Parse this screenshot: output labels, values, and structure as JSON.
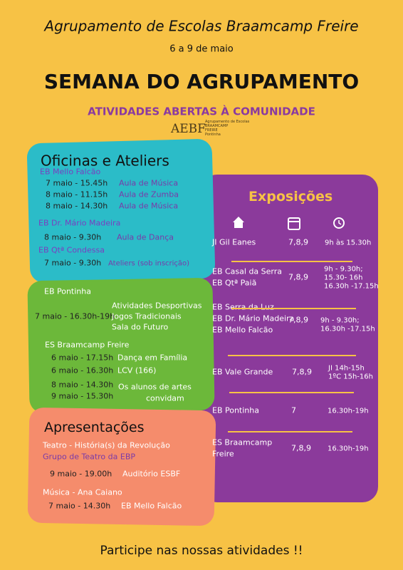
{
  "header": {
    "title": "Agrupamento de Escolas Braamcamp Freire",
    "dates": "6 a 9 de maio",
    "heading": "SEMANA DO AGRUPAMENTO",
    "subheading": "ATIVIDADES ABERTAS À COMUNIDADE",
    "logo": {
      "mark": "AEBF",
      "lines": [
        "Agrupamento de Escolas",
        "BRAAMCAMP",
        "FREIRE",
        "Pontinha"
      ]
    }
  },
  "workshops": {
    "title": "Oficinas e Ateliers",
    "groups": [
      {
        "school": "EB Mello Falcão",
        "rows": [
          {
            "date": "7 maio - 15.45h",
            "activity": "Aula de Música"
          },
          {
            "date": "8 maio - 11.15h",
            "activity": "Aula de Zumba"
          },
          {
            "date": "8 maio - 14.30h",
            "activity": "Aula de Música"
          }
        ]
      },
      {
        "school": "EB Dr. Mário Madeira",
        "rows": [
          {
            "date": "8 maio - 9.30h",
            "activity": "Aula de Dança"
          }
        ]
      },
      {
        "school": "EB Qtª Condessa",
        "rows": [
          {
            "date": "7 maio - 9.30h",
            "activity": "Ateliers (sob inscrição)"
          }
        ]
      }
    ]
  },
  "sports": {
    "pontinha": {
      "school": "EB Pontinha",
      "time": "7 maio - 16.30h-19h",
      "activities": [
        "Atividades Desportivas",
        "Jogos Tradicionais",
        "Sala do Futuro"
      ]
    },
    "braamcamp": {
      "school": "ES Braamcamp Freire",
      "rows": [
        {
          "date": "6 maio - 17.15h",
          "activity": "Dança em Família"
        },
        {
          "date": "6 maio - 16.30h",
          "activity": "LCV (166)"
        }
      ],
      "dates": [
        "8 maio - 14.30h",
        "9 maio - 15.30h"
      ],
      "note": [
        "Os alunos de artes",
        "convidam"
      ]
    }
  },
  "presentations": {
    "title": "Apresentações",
    "items": [
      {
        "name": "Teatro - História(s) da Revolução",
        "group": "Grupo de Teatro da EBP",
        "date": "9 maio - 19.00h",
        "place": "Auditório ESBF"
      },
      {
        "name": "Música - Ana Caiano",
        "date": "7 maio - 14.30h",
        "place": "EB Mello Falcão"
      }
    ]
  },
  "exhibitions": {
    "title": "Exposições",
    "rows": [
      {
        "schools": [
          "JI Gil Eanes"
        ],
        "days": "7,8,9",
        "hours": [
          "9h às 15.30h"
        ]
      },
      {
        "schools": [
          "EB Casal da Serra",
          "EB Qtª Paiã"
        ],
        "days": "7,8,9",
        "hours": [
          "9h - 9.30h;",
          "15.30- 16h",
          "16.30h -17.15h"
        ]
      },
      {
        "schools": [
          "EB Serra da Luz",
          "EB Dr. Mário Madeira",
          "EB Mello Falcão"
        ],
        "days": "7,8,9",
        "hours": [
          "9h - 9.30h;",
          "16.30h -17.15h"
        ]
      },
      {
        "schools": [
          "EB Vale Grande"
        ],
        "days": "7,8,9",
        "hours": [
          "JI 14h-15h",
          "1ºC 15h-16h"
        ]
      },
      {
        "schools": [
          "EB Pontinha"
        ],
        "days": "7",
        "hours": [
          "16.30h-19h"
        ]
      },
      {
        "schools": [
          "ES Braamcamp",
          "Freire"
        ],
        "days": "7,8,9",
        "hours": [
          "16.30h-19h"
        ]
      }
    ]
  },
  "footer": "Participe nas nossas atividades !!"
}
